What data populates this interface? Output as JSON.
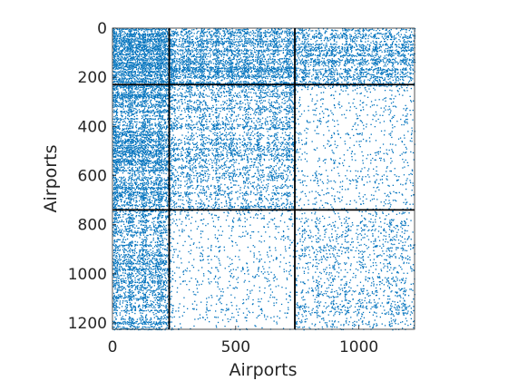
{
  "chart_data": {
    "type": "heatmap",
    "subtype": "sparsity-pattern",
    "title": "",
    "xlabel": "Airports",
    "ylabel": "Airports",
    "xlim": [
      0,
      1226
    ],
    "ylim": [
      0,
      1226
    ],
    "y_axis_direction": "reversed",
    "x_ticks": [
      0,
      500,
      1000
    ],
    "y_ticks": [
      0,
      200,
      400,
      600,
      800,
      1000,
      1200
    ],
    "x_tick_labels": [
      "0",
      "500",
      "1000"
    ],
    "y_tick_labels": [
      "0",
      "200",
      "400",
      "600",
      "800",
      "1000",
      "1200"
    ],
    "block_boundaries": [
      230,
      740
    ],
    "blocks": [
      {
        "rows": [
          0,
          230
        ],
        "cols": [
          0,
          230
        ],
        "density": 0.85
      },
      {
        "rows": [
          0,
          230
        ],
        "cols": [
          230,
          740
        ],
        "density": 0.45
      },
      {
        "rows": [
          0,
          230
        ],
        "cols": [
          740,
          1226
        ],
        "density": 0.32
      },
      {
        "rows": [
          230,
          740
        ],
        "cols": [
          0,
          230
        ],
        "density": 0.5
      },
      {
        "rows": [
          230,
          740
        ],
        "cols": [
          230,
          740
        ],
        "density": 0.22
      },
      {
        "rows": [
          230,
          740
        ],
        "cols": [
          740,
          1226
        ],
        "density": 0.06
      },
      {
        "rows": [
          740,
          1226
        ],
        "cols": [
          0,
          230
        ],
        "density": 0.38
      },
      {
        "rows": [
          740,
          1226
        ],
        "cols": [
          230,
          740
        ],
        "density": 0.05
      },
      {
        "rows": [
          740,
          1226
        ],
        "cols": [
          740,
          1226
        ],
        "density": 0.12
      }
    ],
    "marker_color": "#0072BD",
    "boundary_line_color": "#000000",
    "grid": false
  }
}
